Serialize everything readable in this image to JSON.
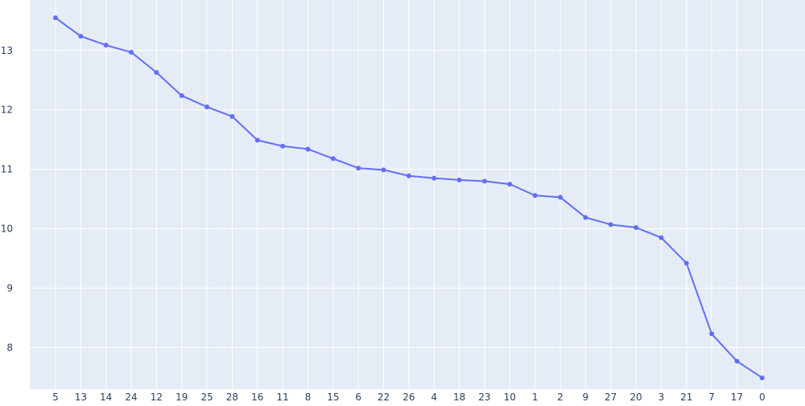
{
  "colors": {
    "plot_background": "#e5ecf6",
    "gridline": "#ffffff",
    "series_line": "#636efa",
    "tick_text": "#2a3f5f"
  },
  "chart_data": {
    "type": "line",
    "title": "",
    "xlabel": "",
    "ylabel": "",
    "categories": [
      "5",
      "13",
      "14",
      "24",
      "12",
      "19",
      "25",
      "28",
      "16",
      "11",
      "8",
      "15",
      "6",
      "22",
      "26",
      "4",
      "18",
      "23",
      "10",
      "1",
      "2",
      "9",
      "27",
      "20",
      "3",
      "21",
      "7",
      "17",
      "0"
    ],
    "ylim": [
      7.3,
      13.85
    ],
    "yticks": [
      8,
      9,
      10,
      11,
      12,
      13
    ],
    "grid": true,
    "legend": "none",
    "series": [
      {
        "mode": "lines+markers",
        "values": [
          13.55,
          13.24,
          13.09,
          12.97,
          12.63,
          12.24,
          12.05,
          11.89,
          11.49,
          11.39,
          11.34,
          11.18,
          11.02,
          10.99,
          10.89,
          10.85,
          10.82,
          10.8,
          10.75,
          10.56,
          10.53,
          10.19,
          10.07,
          10.02,
          9.85,
          9.42,
          8.23,
          7.77,
          7.49
        ]
      }
    ]
  }
}
